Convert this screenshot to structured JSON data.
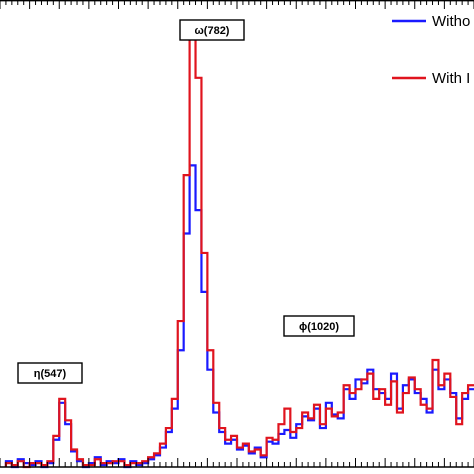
{
  "chart_data": {
    "type": "line",
    "subtype": "step-histogram",
    "title": "",
    "xlabel": "",
    "ylabel": "",
    "xlim": [
      400,
      1200
    ],
    "ylim": [
      0,
      240
    ],
    "grid": false,
    "legend_position": "top-right",
    "colors": {
      "Without": "#1a1aff",
      "With": "#e0141e"
    },
    "legend": [
      {
        "text": "Witho",
        "color": "#1a1aff"
      },
      {
        "text": "With I",
        "color": "#e0141e"
      }
    ],
    "annotations": [
      {
        "text": "η(547)",
        "x": 450,
        "y": 48
      },
      {
        "text": "ω(782)",
        "x": 790,
        "y": 228
      },
      {
        "text": "ϕ(1020)",
        "x": 1000,
        "y": 65
      }
    ],
    "series": [
      {
        "name": "Without",
        "x": [
          415,
          425,
          435,
          445,
          455,
          465,
          475,
          485,
          495,
          505,
          515,
          525,
          535,
          545,
          555,
          565,
          575,
          585,
          595,
          605,
          615,
          625,
          635,
          645,
          655,
          665,
          675,
          685,
          695,
          705,
          715,
          725,
          735,
          745,
          755,
          765,
          775,
          785,
          795,
          805,
          815,
          825,
          835,
          845,
          855,
          865,
          875,
          885,
          895,
          905,
          915,
          925,
          935,
          945,
          955,
          965,
          975,
          985,
          995,
          1005,
          1015,
          1025,
          1035,
          1045,
          1055,
          1065,
          1075,
          1085,
          1095,
          1105,
          1115,
          1125,
          1135,
          1145,
          1155,
          1165,
          1175,
          1185,
          1195
        ],
        "y": [
          3,
          0,
          4,
          2,
          1,
          3,
          0,
          2,
          14,
          33,
          22,
          8,
          3,
          0,
          2,
          5,
          1,
          3,
          2,
          4,
          0,
          3,
          1,
          2,
          4,
          6,
          10,
          18,
          30,
          60,
          120,
          155,
          132,
          90,
          50,
          28,
          18,
          12,
          14,
          9,
          11,
          7,
          10,
          5,
          13,
          12,
          17,
          19,
          15,
          22,
          26,
          24,
          30,
          20,
          33,
          27,
          25,
          40,
          35,
          45,
          43,
          50,
          40,
          38,
          35,
          48,
          30,
          42,
          45,
          38,
          35,
          28,
          50,
          40,
          45,
          38,
          25,
          35,
          40
        ]
      },
      {
        "name": "With",
        "x": [
          415,
          425,
          435,
          445,
          455,
          465,
          475,
          485,
          495,
          505,
          515,
          525,
          535,
          545,
          555,
          565,
          575,
          585,
          595,
          605,
          615,
          625,
          635,
          645,
          655,
          665,
          675,
          685,
          695,
          705,
          715,
          725,
          735,
          745,
          755,
          765,
          775,
          785,
          795,
          805,
          815,
          825,
          835,
          845,
          855,
          865,
          875,
          885,
          895,
          905,
          915,
          925,
          935,
          945,
          955,
          965,
          975,
          985,
          995,
          1005,
          1015,
          1025,
          1035,
          1045,
          1055,
          1065,
          1075,
          1085,
          1095,
          1105,
          1115,
          1125,
          1135,
          1145,
          1155,
          1165,
          1175,
          1185,
          1195
        ],
        "y": [
          2,
          1,
          3,
          0,
          2,
          2,
          1,
          3,
          16,
          35,
          24,
          9,
          4,
          1,
          1,
          4,
          2,
          2,
          3,
          3,
          1,
          2,
          2,
          3,
          5,
          7,
          12,
          20,
          35,
          75,
          150,
          228,
          200,
          110,
          60,
          33,
          20,
          14,
          16,
          10,
          12,
          8,
          9,
          6,
          15,
          14,
          22,
          30,
          18,
          20,
          28,
          25,
          32,
          22,
          30,
          26,
          28,
          42,
          38,
          40,
          45,
          48,
          35,
          40,
          32,
          44,
          28,
          38,
          46,
          40,
          32,
          30,
          55,
          42,
          48,
          36,
          22,
          38,
          42
        ]
      }
    ]
  }
}
